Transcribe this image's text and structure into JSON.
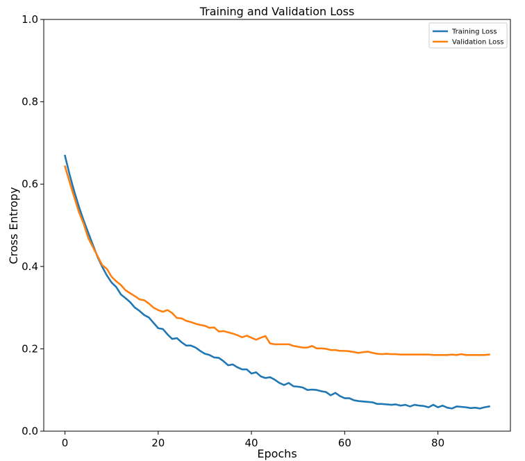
{
  "chart_data": {
    "type": "line",
    "title": "Training and Validation Loss",
    "xlabel": "Epochs",
    "ylabel": "Cross Entropy",
    "xlim": [
      -4.55,
      95.55
    ],
    "ylim": [
      0.0,
      1.0
    ],
    "xticks": [
      0,
      20,
      40,
      60,
      80
    ],
    "yticks": [
      0.0,
      0.2,
      0.4,
      0.6,
      0.8,
      1.0
    ],
    "ytick_labels": [
      "0.0",
      "0.2",
      "0.4",
      "0.6",
      "0.8",
      "1.0"
    ],
    "legend_position": "top-right",
    "grid": false,
    "series": [
      {
        "name": "Training Loss",
        "color": "#1f77b4",
        "values": [
          0.669,
          0.623,
          0.582,
          0.545,
          0.512,
          0.482,
          0.452,
          0.423,
          0.399,
          0.378,
          0.361,
          0.35,
          0.332,
          0.323,
          0.313,
          0.3,
          0.292,
          0.282,
          0.276,
          0.263,
          0.25,
          0.248,
          0.235,
          0.224,
          0.226,
          0.216,
          0.208,
          0.208,
          0.203,
          0.195,
          0.188,
          0.185,
          0.179,
          0.178,
          0.17,
          0.16,
          0.162,
          0.155,
          0.15,
          0.15,
          0.14,
          0.143,
          0.133,
          0.129,
          0.131,
          0.125,
          0.117,
          0.112,
          0.117,
          0.109,
          0.108,
          0.106,
          0.1,
          0.101,
          0.1,
          0.097,
          0.095,
          0.087,
          0.093,
          0.085,
          0.08,
          0.08,
          0.075,
          0.073,
          0.072,
          0.071,
          0.07,
          0.066,
          0.066,
          0.065,
          0.064,
          0.065,
          0.062,
          0.064,
          0.06,
          0.064,
          0.062,
          0.061,
          0.058,
          0.064,
          0.058,
          0.062,
          0.057,
          0.055,
          0.06,
          0.059,
          0.058,
          0.056,
          0.057,
          0.055,
          0.058,
          0.06
        ]
      },
      {
        "name": "Validation Loss",
        "color": "#ff7f0e",
        "values": [
          0.643,
          0.605,
          0.568,
          0.532,
          0.504,
          0.469,
          0.447,
          0.425,
          0.403,
          0.394,
          0.375,
          0.364,
          0.355,
          0.342,
          0.335,
          0.328,
          0.32,
          0.318,
          0.31,
          0.3,
          0.294,
          0.29,
          0.294,
          0.287,
          0.275,
          0.274,
          0.268,
          0.265,
          0.261,
          0.258,
          0.256,
          0.251,
          0.252,
          0.242,
          0.243,
          0.24,
          0.237,
          0.233,
          0.228,
          0.232,
          0.227,
          0.222,
          0.227,
          0.231,
          0.213,
          0.211,
          0.211,
          0.211,
          0.211,
          0.207,
          0.205,
          0.203,
          0.203,
          0.207,
          0.201,
          0.201,
          0.2,
          0.197,
          0.197,
          0.195,
          0.195,
          0.194,
          0.192,
          0.19,
          0.192,
          0.193,
          0.19,
          0.188,
          0.187,
          0.188,
          0.187,
          0.187,
          0.186,
          0.186,
          0.186,
          0.186,
          0.186,
          0.186,
          0.186,
          0.185,
          0.185,
          0.185,
          0.185,
          0.186,
          0.185,
          0.187,
          0.185,
          0.185,
          0.185,
          0.185,
          0.185,
          0.186
        ]
      }
    ]
  }
}
